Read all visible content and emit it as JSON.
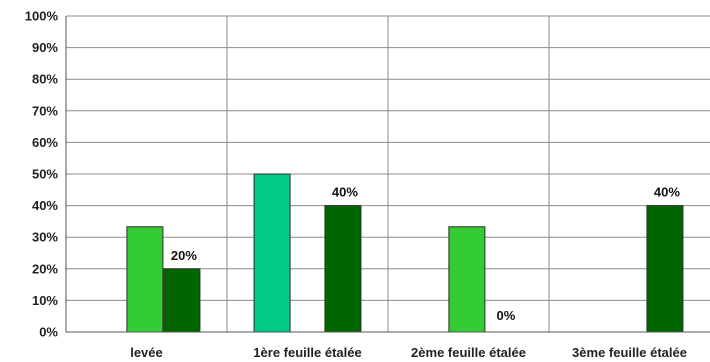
{
  "chart_data": {
    "type": "bar",
    "title": "",
    "xlabel": "",
    "ylabel": "",
    "ylim": [
      0,
      100
    ],
    "y_ticks": [
      "0%",
      "10%",
      "20%",
      "30%",
      "40%",
      "50%",
      "60%",
      "70%",
      "80%",
      "90%",
      "100%"
    ],
    "grid": "horizontal",
    "legend": "none",
    "categories": [
      "levée",
      "1ère feuille étalée",
      "2ème feuille étalée",
      "3ème feuille étalée"
    ],
    "groups": [
      {
        "category": "levée",
        "bars": [
          {
            "value": 33.3,
            "color": "#33cc33",
            "label": ""
          },
          {
            "value": 20,
            "color": "#006600",
            "label": "20%"
          }
        ]
      },
      {
        "category": "1ère feuille étalée",
        "bars": [
          {
            "value": 50,
            "color": "#00cc88",
            "label": ""
          },
          {
            "value": 40,
            "color": "#006600",
            "label": "40%"
          }
        ]
      },
      {
        "category": "2ème feuille étalée",
        "bars": [
          {
            "value": 33.3,
            "color": "#33cc33",
            "label": ""
          },
          {
            "value": 0,
            "color": "#006600",
            "label": "0%"
          }
        ]
      },
      {
        "category": "3ème feuille étalée",
        "bars": [
          {
            "value": 40,
            "color": "#006600",
            "label": "40%"
          }
        ]
      }
    ]
  }
}
